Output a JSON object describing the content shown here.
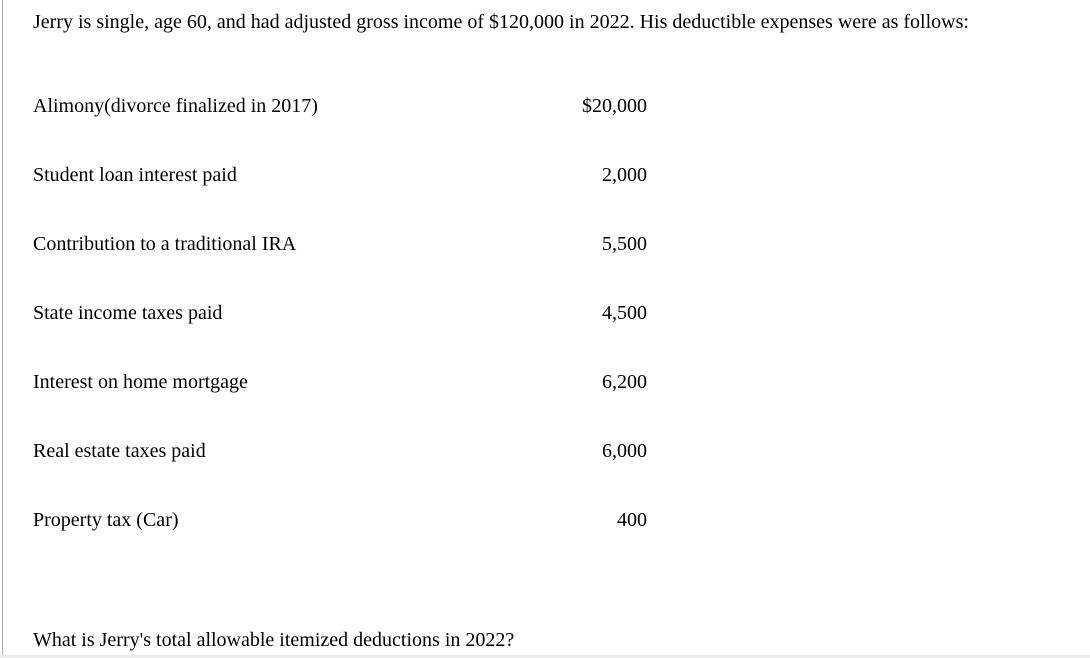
{
  "page": {
    "intro": "Jerry is single, age 60, and had adjusted gross income of $120,000 in 2022. His deductible expenses were as follows:",
    "question": "What is Jerry's total allowable itemized deductions in 2022?"
  },
  "expenses": {
    "rows": [
      {
        "label": "Alimony(divorce finalized in 2017)",
        "value": "$20,000"
      },
      {
        "label": "Student loan interest paid",
        "value": "2,000"
      },
      {
        "label": "Contribution to a traditional IRA",
        "value": "5,500"
      },
      {
        "label": "State income taxes paid",
        "value": "4,500"
      },
      {
        "label": "Interest on home mortgage",
        "value": "6,200"
      },
      {
        "label": "Real estate taxes paid",
        "value": "6,000"
      },
      {
        "label": "Property tax (Car)",
        "value": "400"
      }
    ]
  },
  "colors": {
    "left_rule": "#aaaaaa",
    "bottom_rule": "#ececec",
    "text": "#000000",
    "background": "#ffffff"
  }
}
